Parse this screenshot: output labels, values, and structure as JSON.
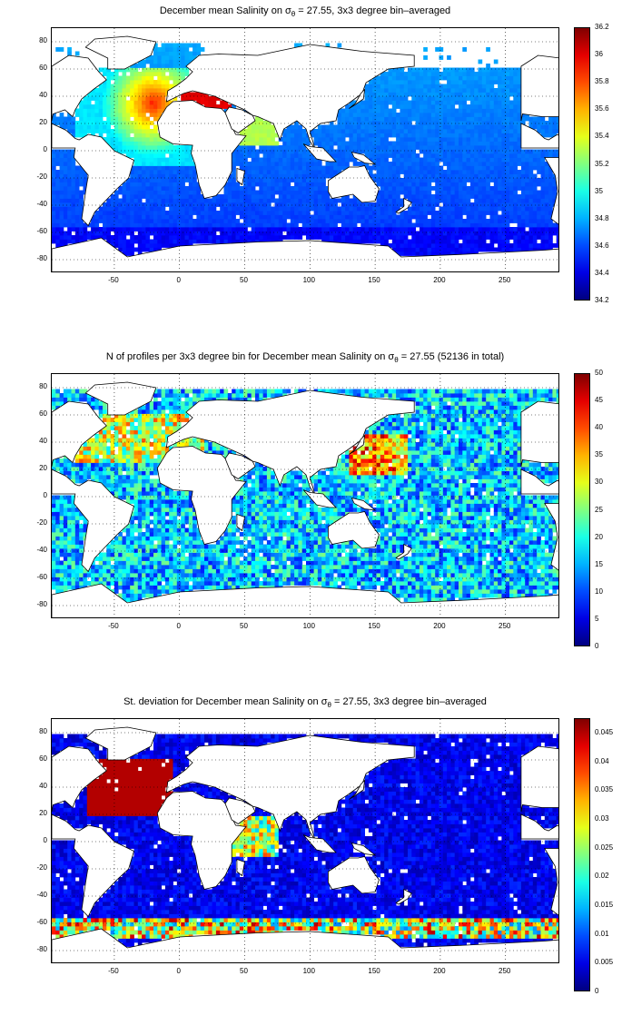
{
  "panels": [
    {
      "title_pre": "December mean Salinity on σ",
      "title_sub": "θ",
      "title_post": " = 27.55, 3x3 degree bin–averaged",
      "colorbar_ticks": [
        "36.2",
        "36",
        "35.8",
        "35.6",
        "35.4",
        "35.2",
        "35",
        "34.8",
        "34.6",
        "34.4",
        "34.2"
      ],
      "colorbar_range": [
        34.2,
        36.2
      ]
    },
    {
      "title_pre": "N of profiles per 3x3 degree bin for December mean Salinity on σ",
      "title_sub": "θ",
      "title_post": " = 27.55 (52136 in total)",
      "colorbar_ticks": [
        "50",
        "45",
        "40",
        "35",
        "30",
        "25",
        "20",
        "15",
        "10",
        "5",
        "0"
      ],
      "colorbar_range": [
        0,
        50
      ]
    },
    {
      "title_pre": "St. deviation for December mean Salinity on σ",
      "title_sub": "θ",
      "title_post": " = 27.55, 3x3 degree bin–averaged",
      "colorbar_ticks": [
        "0.045",
        "0.04",
        "0.035",
        "0.03",
        "0.025",
        "0.02",
        "0.015",
        "0.01",
        "0.005",
        "0"
      ],
      "colorbar_range": [
        0,
        0.0475
      ]
    }
  ],
  "axes": {
    "x_ticks": [
      "-50",
      "0",
      "50",
      "100",
      "150",
      "200",
      "250"
    ],
    "y_ticks": [
      "80",
      "60",
      "40",
      "20",
      "0",
      "-20",
      "-40",
      "-60",
      "-80"
    ],
    "x_range": [
      -98,
      292
    ],
    "y_range": [
      -90,
      90
    ]
  },
  "colors": {
    "colormap": "jet",
    "land": "#ffffff",
    "coast": "#000000",
    "grid": "#000000"
  }
}
